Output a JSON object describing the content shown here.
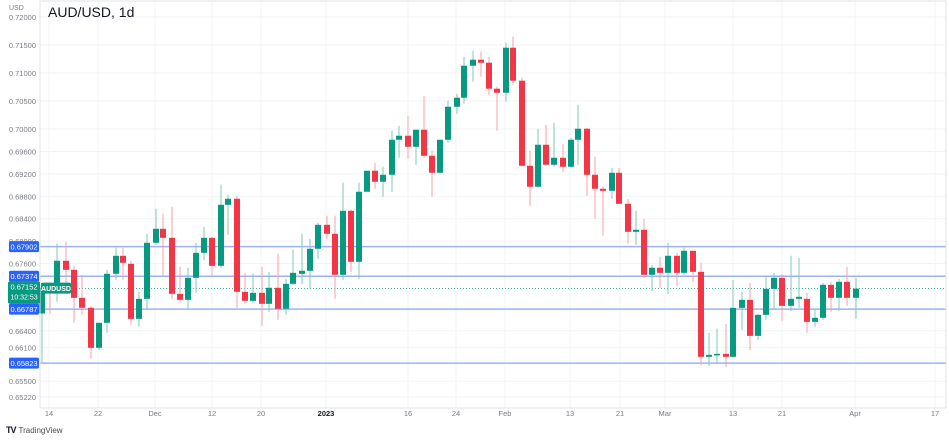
{
  "header": {
    "title": "AUD/USD, 1d",
    "currency": "USD"
  },
  "footer": {
    "logo": "TV",
    "brand": "TradingView"
  },
  "colors": {
    "up": "#089981",
    "down": "#f23645",
    "up_wick": "#7fc8b9",
    "down_wick": "#f7a2a9",
    "level_line": "#9db2f0",
    "level_label_bg": "#2962ff",
    "current_price_bg": "#089981",
    "grid": "#f2f3f5",
    "axis_text": "#787b86"
  },
  "chart_data": {
    "type": "candlestick",
    "title": "AUD/USD, 1d",
    "xlabel": "",
    "ylabel": "USD",
    "ylim": [
      0.6513,
      0.7203
    ],
    "grid": true,
    "y_ticks": [
      "0.72000",
      "0.71500",
      "0.71000",
      "0.70500",
      "0.70000",
      "0.69600",
      "0.69200",
      "0.68800",
      "0.68400",
      "0.68000",
      "0.67600",
      "0.66400",
      "0.66100",
      "0.65500",
      "0.65220"
    ],
    "x_ticks": [
      {
        "label": "14",
        "x": 49
      },
      {
        "label": "22",
        "x": 98
      },
      {
        "label": "Dec",
        "x": 155
      },
      {
        "label": "12",
        "x": 212
      },
      {
        "label": "20",
        "x": 261
      },
      {
        "label": "2023",
        "x": 326,
        "bold": true
      },
      {
        "label": "16",
        "x": 408
      },
      {
        "label": "24",
        "x": 456
      },
      {
        "label": "Feb",
        "x": 505
      },
      {
        "label": "13",
        "x": 570
      },
      {
        "label": "21",
        "x": 620
      },
      {
        "label": "Mar",
        "x": 665
      },
      {
        "label": "13",
        "x": 733
      },
      {
        "label": "21",
        "x": 782
      },
      {
        "label": "Apr",
        "x": 855
      },
      {
        "label": "17",
        "x": 935
      }
    ],
    "horizontal_levels": [
      {
        "label": "0.67902",
        "price": 0.67902
      },
      {
        "label": "0.67374",
        "price": 0.67374
      },
      {
        "label": "0.66787",
        "price": 0.66787
      },
      {
        "label": "0.65823",
        "price": 0.65823
      }
    ],
    "current_price": {
      "symbol": "AUDUSD",
      "price": "0.67152",
      "countdown": "10:32:53",
      "value": 0.67152
    },
    "candles": [
      {
        "x": 42,
        "o": 0.66708,
        "h": 0.67131,
        "l": 0.65835,
        "c": 0.67167
      },
      {
        "x": 50,
        "o": 0.67131,
        "h": 0.67167,
        "l": 0.66703,
        "c": 0.67077
      },
      {
        "x": 57,
        "o": 0.67077,
        "h": 0.67952,
        "l": 0.66917,
        "c": 0.67649
      },
      {
        "x": 66,
        "o": 0.67649,
        "h": 0.67988,
        "l": 0.67167,
        "c": 0.67488
      },
      {
        "x": 74,
        "o": 0.67488,
        "h": 0.67559,
        "l": 0.66542,
        "c": 0.66988
      },
      {
        "x": 82,
        "o": 0.66988,
        "h": 0.67399,
        "l": 0.66685,
        "c": 0.6681
      },
      {
        "x": 91,
        "o": 0.6681,
        "h": 0.66846,
        "l": 0.65899,
        "c": 0.66096
      },
      {
        "x": 99,
        "o": 0.66096,
        "h": 0.66542,
        "l": 0.6606,
        "c": 0.66542
      },
      {
        "x": 107,
        "o": 0.66542,
        "h": 0.67488,
        "l": 0.66364,
        "c": 0.67417
      },
      {
        "x": 116,
        "o": 0.67417,
        "h": 0.67881,
        "l": 0.6731,
        "c": 0.67738
      },
      {
        "x": 123,
        "o": 0.67738,
        "h": 0.67881,
        "l": 0.6731,
        "c": 0.67613
      },
      {
        "x": 131,
        "o": 0.67595,
        "h": 0.67649,
        "l": 0.66506,
        "c": 0.66613
      },
      {
        "x": 139,
        "o": 0.66613,
        "h": 0.67095,
        "l": 0.66471,
        "c": 0.6697
      },
      {
        "x": 147,
        "o": 0.6697,
        "h": 0.68131,
        "l": 0.66792,
        "c": 0.6797
      },
      {
        "x": 156,
        "o": 0.6797,
        "h": 0.68577,
        "l": 0.67934,
        "c": 0.6822
      },
      {
        "x": 163,
        "o": 0.6822,
        "h": 0.68488,
        "l": 0.67381,
        "c": 0.68059
      },
      {
        "x": 172,
        "o": 0.68059,
        "h": 0.68613,
        "l": 0.6697,
        "c": 0.67059
      },
      {
        "x": 180,
        "o": 0.67059,
        "h": 0.67541,
        "l": 0.66899,
        "c": 0.66952
      },
      {
        "x": 188,
        "o": 0.66952,
        "h": 0.67524,
        "l": 0.66774,
        "c": 0.67345
      },
      {
        "x": 196,
        "o": 0.67345,
        "h": 0.6797,
        "l": 0.67077,
        "c": 0.67791
      },
      {
        "x": 204,
        "o": 0.67791,
        "h": 0.68256,
        "l": 0.67666,
        "c": 0.68059
      },
      {
        "x": 212,
        "o": 0.68059,
        "h": 0.68077,
        "l": 0.67381,
        "c": 0.67559
      },
      {
        "x": 221,
        "o": 0.67559,
        "h": 0.69006,
        "l": 0.67524,
        "c": 0.68648
      },
      {
        "x": 228,
        "o": 0.68648,
        "h": 0.68827,
        "l": 0.68113,
        "c": 0.68756
      },
      {
        "x": 237,
        "o": 0.68756,
        "h": 0.68809,
        "l": 0.6681,
        "c": 0.67095
      },
      {
        "x": 245,
        "o": 0.67095,
        "h": 0.67434,
        "l": 0.66881,
        "c": 0.66934
      },
      {
        "x": 253,
        "o": 0.66934,
        "h": 0.67416,
        "l": 0.66899,
        "c": 0.67077
      },
      {
        "x": 262,
        "o": 0.67077,
        "h": 0.67541,
        "l": 0.66488,
        "c": 0.66881
      },
      {
        "x": 269,
        "o": 0.66881,
        "h": 0.67452,
        "l": 0.66738,
        "c": 0.67167
      },
      {
        "x": 278,
        "o": 0.67167,
        "h": 0.67773,
        "l": 0.66596,
        "c": 0.66792
      },
      {
        "x": 286,
        "o": 0.66792,
        "h": 0.67327,
        "l": 0.66685,
        "c": 0.67238
      },
      {
        "x": 293,
        "o": 0.67238,
        "h": 0.67845,
        "l": 0.6722,
        "c": 0.67434
      },
      {
        "x": 302,
        "o": 0.67416,
        "h": 0.68131,
        "l": 0.67238,
        "c": 0.6747
      },
      {
        "x": 310,
        "o": 0.6747,
        "h": 0.68041,
        "l": 0.67149,
        "c": 0.67863
      },
      {
        "x": 318,
        "o": 0.67863,
        "h": 0.68327,
        "l": 0.67684,
        "c": 0.68291
      },
      {
        "x": 327,
        "o": 0.68291,
        "h": 0.68452,
        "l": 0.68041,
        "c": 0.68131
      },
      {
        "x": 335,
        "o": 0.68131,
        "h": 0.68452,
        "l": 0.6697,
        "c": 0.67399
      },
      {
        "x": 343,
        "o": 0.67399,
        "h": 0.69041,
        "l": 0.6731,
        "c": 0.68541
      },
      {
        "x": 351,
        "o": 0.68541,
        "h": 0.68559,
        "l": 0.67452,
        "c": 0.67631
      },
      {
        "x": 359,
        "o": 0.67631,
        "h": 0.69041,
        "l": 0.67327,
        "c": 0.68881
      },
      {
        "x": 367,
        "o": 0.68881,
        "h": 0.69256,
        "l": 0.68881,
        "c": 0.69256
      },
      {
        "x": 375,
        "o": 0.69256,
        "h": 0.69399,
        "l": 0.68934,
        "c": 0.69059
      },
      {
        "x": 383,
        "o": 0.69059,
        "h": 0.69327,
        "l": 0.68791,
        "c": 0.69184
      },
      {
        "x": 392,
        "o": 0.69184,
        "h": 0.6997,
        "l": 0.68881,
        "c": 0.69809
      },
      {
        "x": 399,
        "o": 0.69809,
        "h": 0.70059,
        "l": 0.69488,
        "c": 0.69881
      },
      {
        "x": 408,
        "o": 0.69881,
        "h": 0.70238,
        "l": 0.6947,
        "c": 0.69684
      },
      {
        "x": 416,
        "o": 0.69684,
        "h": 0.69988,
        "l": 0.69363,
        "c": 0.69988
      },
      {
        "x": 424,
        "o": 0.69988,
        "h": 0.70594,
        "l": 0.69488,
        "c": 0.69523
      },
      {
        "x": 432,
        "o": 0.69523,
        "h": 0.69613,
        "l": 0.68791,
        "c": 0.6922
      },
      {
        "x": 440,
        "o": 0.6922,
        "h": 0.69809,
        "l": 0.6922,
        "c": 0.69809
      },
      {
        "x": 448,
        "o": 0.69809,
        "h": 0.70505,
        "l": 0.69756,
        "c": 0.70398
      },
      {
        "x": 457,
        "o": 0.70398,
        "h": 0.7063,
        "l": 0.70274,
        "c": 0.70559
      },
      {
        "x": 464,
        "o": 0.70559,
        "h": 0.71291,
        "l": 0.70452,
        "c": 0.7113
      },
      {
        "x": 473,
        "o": 0.7113,
        "h": 0.71398,
        "l": 0.70845,
        "c": 0.71238
      },
      {
        "x": 481,
        "o": 0.71238,
        "h": 0.7138,
        "l": 0.70934,
        "c": 0.71184
      },
      {
        "x": 489,
        "o": 0.71184,
        "h": 0.71291,
        "l": 0.70613,
        "c": 0.7072
      },
      {
        "x": 497,
        "o": 0.7072,
        "h": 0.70755,
        "l": 0.6997,
        "c": 0.70648
      },
      {
        "x": 506,
        "o": 0.70648,
        "h": 0.71541,
        "l": 0.70488,
        "c": 0.71452
      },
      {
        "x": 513,
        "o": 0.71452,
        "h": 0.71648,
        "l": 0.70791,
        "c": 0.70863
      },
      {
        "x": 522,
        "o": 0.70863,
        "h": 0.70916,
        "l": 0.69327,
        "c": 0.69345
      },
      {
        "x": 530,
        "o": 0.69345,
        "h": 0.69613,
        "l": 0.68631,
        "c": 0.6897
      },
      {
        "x": 538,
        "o": 0.6897,
        "h": 0.70006,
        "l": 0.68952,
        "c": 0.6972
      },
      {
        "x": 546,
        "o": 0.6972,
        "h": 0.70077,
        "l": 0.69345,
        "c": 0.69363
      },
      {
        "x": 554,
        "o": 0.69363,
        "h": 0.70113,
        "l": 0.69327,
        "c": 0.69488
      },
      {
        "x": 563,
        "o": 0.69488,
        "h": 0.69738,
        "l": 0.69238,
        "c": 0.69327
      },
      {
        "x": 571,
        "o": 0.69327,
        "h": 0.69845,
        "l": 0.69309,
        "c": 0.69809
      },
      {
        "x": 578,
        "o": 0.69809,
        "h": 0.70434,
        "l": 0.69363,
        "c": 0.70006
      },
      {
        "x": 587,
        "o": 0.70006,
        "h": 0.70024,
        "l": 0.68809,
        "c": 0.69184
      },
      {
        "x": 595,
        "o": 0.69184,
        "h": 0.69506,
        "l": 0.68398,
        "c": 0.68934
      },
      {
        "x": 603,
        "o": 0.68934,
        "h": 0.68988,
        "l": 0.68095,
        "c": 0.68898
      },
      {
        "x": 612,
        "o": 0.68898,
        "h": 0.69309,
        "l": 0.68756,
        "c": 0.6922
      },
      {
        "x": 619,
        "o": 0.6922,
        "h": 0.69309,
        "l": 0.68684,
        "c": 0.68666
      },
      {
        "x": 628,
        "o": 0.68666,
        "h": 0.68756,
        "l": 0.67952,
        "c": 0.68166
      },
      {
        "x": 636,
        "o": 0.68166,
        "h": 0.68541,
        "l": 0.67934,
        "c": 0.68202
      },
      {
        "x": 644,
        "o": 0.68202,
        "h": 0.68398,
        "l": 0.67345,
        "c": 0.67399
      },
      {
        "x": 652,
        "o": 0.67399,
        "h": 0.67577,
        "l": 0.67113,
        "c": 0.67524
      },
      {
        "x": 660,
        "o": 0.67524,
        "h": 0.6772,
        "l": 0.67167,
        "c": 0.67434
      },
      {
        "x": 668,
        "o": 0.67434,
        "h": 0.6797,
        "l": 0.67059,
        "c": 0.67738
      },
      {
        "x": 677,
        "o": 0.67738,
        "h": 0.67791,
        "l": 0.67202,
        "c": 0.67434
      },
      {
        "x": 684,
        "o": 0.67434,
        "h": 0.67881,
        "l": 0.67399,
        "c": 0.67827
      },
      {
        "x": 693,
        "o": 0.67827,
        "h": 0.67827,
        "l": 0.67274,
        "c": 0.67452
      },
      {
        "x": 701,
        "o": 0.67452,
        "h": 0.67613,
        "l": 0.65787,
        "c": 0.65935
      },
      {
        "x": 709,
        "o": 0.65935,
        "h": 0.66363,
        "l": 0.65771,
        "c": 0.6597
      },
      {
        "x": 717,
        "o": 0.6597,
        "h": 0.66435,
        "l": 0.65808,
        "c": 0.65988
      },
      {
        "x": 726,
        "o": 0.65988,
        "h": 0.66524,
        "l": 0.65754,
        "c": 0.65935
      },
      {
        "x": 733,
        "o": 0.65935,
        "h": 0.67309,
        "l": 0.65935,
        "c": 0.66809
      },
      {
        "x": 742,
        "o": 0.66809,
        "h": 0.67095,
        "l": 0.66416,
        "c": 0.66952
      },
      {
        "x": 750,
        "o": 0.66952,
        "h": 0.67256,
        "l": 0.6606,
        "c": 0.66309
      },
      {
        "x": 758,
        "o": 0.66309,
        "h": 0.66702,
        "l": 0.66238,
        "c": 0.66684
      },
      {
        "x": 766,
        "o": 0.66684,
        "h": 0.67381,
        "l": 0.66595,
        "c": 0.67149
      },
      {
        "x": 774,
        "o": 0.67149,
        "h": 0.67434,
        "l": 0.66791,
        "c": 0.67345
      },
      {
        "x": 782,
        "o": 0.67345,
        "h": 0.67416,
        "l": 0.66577,
        "c": 0.66845
      },
      {
        "x": 791,
        "o": 0.66845,
        "h": 0.67738,
        "l": 0.66756,
        "c": 0.6697
      },
      {
        "x": 799,
        "o": 0.6697,
        "h": 0.67702,
        "l": 0.66809,
        "c": 0.67006
      },
      {
        "x": 807,
        "o": 0.6697,
        "h": 0.67077,
        "l": 0.66363,
        "c": 0.66559
      },
      {
        "x": 815,
        "o": 0.66559,
        "h": 0.66791,
        "l": 0.6647,
        "c": 0.66631
      },
      {
        "x": 823,
        "o": 0.66631,
        "h": 0.67256,
        "l": 0.66595,
        "c": 0.6722
      },
      {
        "x": 831,
        "o": 0.6722,
        "h": 0.67274,
        "l": 0.66738,
        "c": 0.66988
      },
      {
        "x": 839,
        "o": 0.66988,
        "h": 0.67327,
        "l": 0.66756,
        "c": 0.67274
      },
      {
        "x": 847,
        "o": 0.67274,
        "h": 0.67541,
        "l": 0.66845,
        "c": 0.66988
      },
      {
        "x": 856,
        "o": 0.66988,
        "h": 0.67345,
        "l": 0.66613,
        "c": 0.67152
      }
    ]
  }
}
